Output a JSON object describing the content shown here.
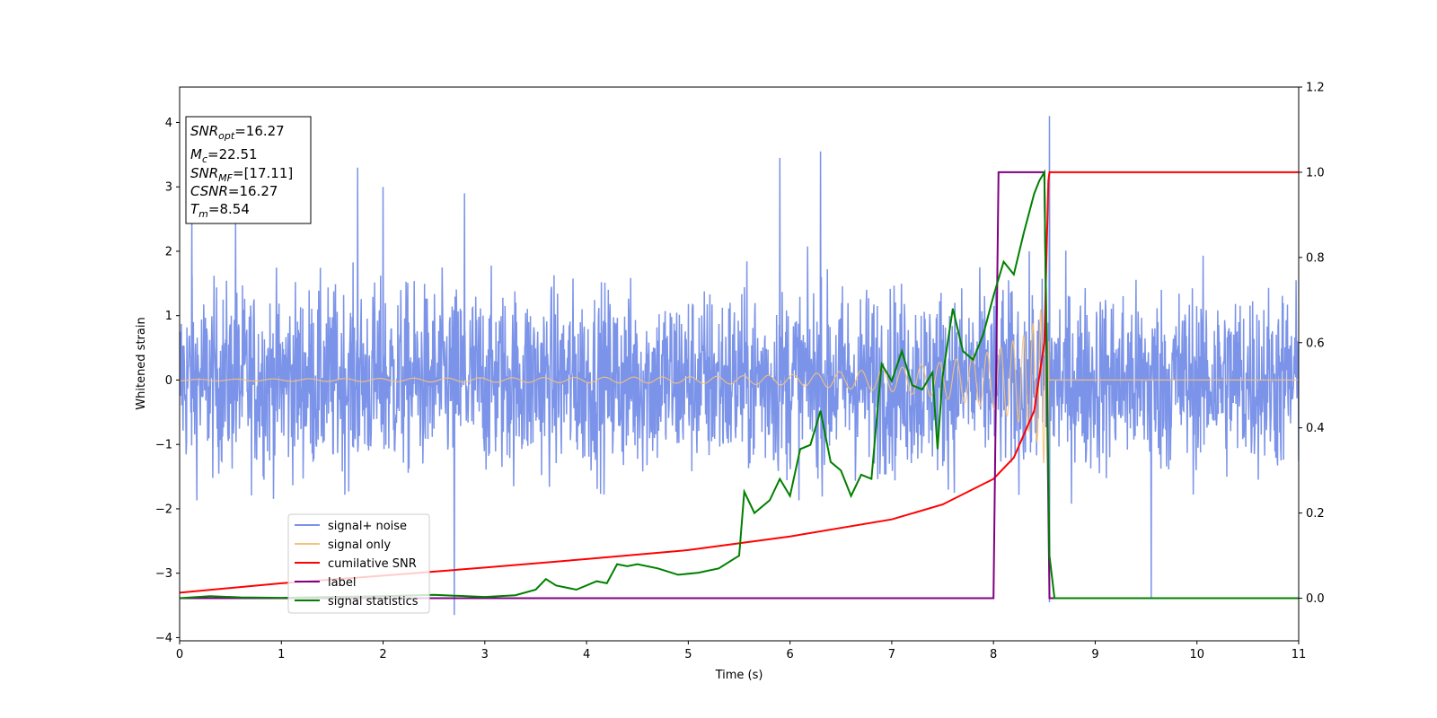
{
  "chart_data": {
    "type": "line",
    "xlabel": "Time (s)",
    "ylabel": "Whitened strain",
    "xlim": [
      0,
      11
    ],
    "ylim_left": [
      -4.05,
      4.55
    ],
    "ylim_right": [
      -0.1,
      1.2
    ],
    "x_ticks": [
      "0",
      "1",
      "2",
      "3",
      "4",
      "5",
      "6",
      "7",
      "8",
      "9",
      "10",
      "11"
    ],
    "y_left_ticks": [
      "−4",
      "−3",
      "−2",
      "−1",
      "0",
      "1",
      "2",
      "3",
      "4"
    ],
    "y_right_ticks": [
      "0.0",
      "0.2",
      "0.4",
      "0.6",
      "0.8",
      "1.0",
      "1.2"
    ],
    "grid": false,
    "legend_position": "lower-left",
    "info_box": {
      "snr_opt": {
        "sym": "SNR",
        "sub": "opt",
        "val": "=16.27"
      },
      "mc": {
        "sym": "M",
        "sub": "c",
        "val": "=22.51"
      },
      "snr_mf": {
        "sym": "SNR",
        "sub": "MF",
        "val": "=[17.11]"
      },
      "csnr": {
        "sym": "CSNR",
        "sub": "",
        "val": "=16.27"
      },
      "tm": {
        "sym": "T",
        "sub": "m",
        "val": "=8.54"
      }
    },
    "series": [
      {
        "name": "signal+ noise",
        "axis": "left",
        "color": "#7b93e8",
        "note_shape": "dense white-noise envelope about 0, amplitude ~±2 with spikes up to 4.1",
        "spikes": [
          [
            0.12,
            2.6
          ],
          [
            0.55,
            2.5
          ],
          [
            1.75,
            3.3
          ],
          [
            2.0,
            3.0
          ],
          [
            2.7,
            -3.65
          ],
          [
            2.8,
            2.9
          ],
          [
            5.9,
            3.45
          ],
          [
            6.3,
            3.55
          ],
          [
            8.55,
            4.1
          ],
          [
            8.55,
            -3.45
          ],
          [
            9.55,
            -3.4
          ]
        ]
      },
      {
        "name": "signal only",
        "axis": "left",
        "color": "#f5c27a",
        "note_shape": "chirp with growing amplitude, merges at 8.54 s then ringdown to 0",
        "amplitude_points": [
          [
            0,
            0.01
          ],
          [
            5,
            0.05
          ],
          [
            6,
            0.08
          ],
          [
            7,
            0.18
          ],
          [
            7.5,
            0.28
          ],
          [
            8,
            0.45
          ],
          [
            8.3,
            0.7
          ],
          [
            8.45,
            1.0
          ],
          [
            8.54,
            1.6
          ],
          [
            8.56,
            0
          ]
        ]
      },
      {
        "name": "cumilative SNR",
        "axis": "right",
        "color": "#ff0000",
        "x": [
          0,
          1,
          2,
          3,
          4,
          5,
          6,
          7,
          7.5,
          8,
          8.2,
          8.4,
          8.5,
          8.54,
          8.55,
          11
        ],
        "y": [
          0.013,
          0.035,
          0.053,
          0.072,
          0.092,
          0.113,
          0.145,
          0.185,
          0.22,
          0.28,
          0.33,
          0.44,
          0.6,
          0.98,
          1.0,
          1.0
        ]
      },
      {
        "name": "label",
        "axis": "right",
        "color": "#800080",
        "x": [
          0,
          8.0,
          8.05,
          8.5,
          8.55,
          11
        ],
        "y": [
          0,
          0,
          1,
          1,
          0,
          0
        ]
      },
      {
        "name": "signal statistics",
        "axis": "right",
        "color": "#008000",
        "x": [
          0,
          0.3,
          0.6,
          1,
          1.5,
          2,
          2.5,
          2.7,
          3,
          3.3,
          3.5,
          3.6,
          3.7,
          3.9,
          4.1,
          4.2,
          4.3,
          4.4,
          4.5,
          4.7,
          4.9,
          5.1,
          5.3,
          5.5,
          5.55,
          5.65,
          5.8,
          5.9,
          6.0,
          6.1,
          6.2,
          6.3,
          6.4,
          6.5,
          6.6,
          6.7,
          6.8,
          6.9,
          7.0,
          7.1,
          7.2,
          7.3,
          7.4,
          7.45,
          7.5,
          7.6,
          7.7,
          7.8,
          7.9,
          8.0,
          8.1,
          8.2,
          8.3,
          8.4,
          8.45,
          8.5,
          8.55,
          8.6,
          11
        ],
        "y": [
          0,
          0.005,
          0.002,
          0.001,
          0.003,
          0.005,
          0.008,
          0.006,
          0.003,
          0.007,
          0.02,
          0.045,
          0.03,
          0.02,
          0.04,
          0.035,
          0.08,
          0.075,
          0.08,
          0.07,
          0.055,
          0.06,
          0.07,
          0.1,
          0.25,
          0.2,
          0.23,
          0.28,
          0.24,
          0.35,
          0.36,
          0.44,
          0.32,
          0.3,
          0.24,
          0.29,
          0.28,
          0.55,
          0.51,
          0.58,
          0.5,
          0.49,
          0.53,
          0.35,
          0.52,
          0.68,
          0.58,
          0.56,
          0.62,
          0.71,
          0.79,
          0.76,
          0.86,
          0.95,
          0.98,
          1.0,
          0.1,
          0.0,
          0.0
        ]
      }
    ]
  }
}
